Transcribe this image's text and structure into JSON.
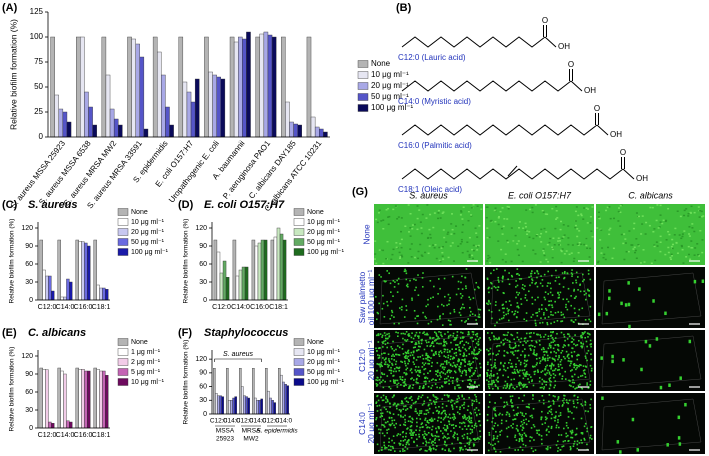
{
  "chart_data": [
    {
      "type": "bar",
      "panel": "(A)",
      "y_label": "Relative biofilm formation (%)",
      "categories": [
        "S. aureus MSSA 25923",
        "S. aureus MSSA 6538",
        "S. aureus MRSA MW2",
        "S. aureus MRSA 33591",
        "S. epidermidis",
        "E. coli O157:H7",
        "Uropathogenic E. coli",
        "A. baumannii",
        "P. aeruginosa PAO1",
        "C. albicans DAY185",
        "C. albicans ATCC 10231"
      ],
      "series": [
        {
          "name": "None",
          "color": "#b4b4b4",
          "values": [
            100,
            100,
            100,
            100,
            100,
            100,
            100,
            100,
            100,
            100,
            100
          ]
        },
        {
          "name": "10 μg ml⁻¹",
          "color": "#e6e6f2",
          "values": [
            42,
            100,
            62,
            98,
            85,
            55,
            65,
            95,
            103,
            35,
            20
          ]
        },
        {
          "name": "20 μg ml⁻¹",
          "color": "#a8a8e6",
          "values": [
            28,
            45,
            28,
            93,
            62,
            45,
            62,
            100,
            105,
            15,
            10
          ]
        },
        {
          "name": "50 μg ml⁻¹",
          "color": "#5555c8",
          "values": [
            25,
            30,
            18,
            80,
            30,
            35,
            60,
            98,
            102,
            13,
            8
          ]
        },
        {
          "name": "100 μg ml⁻¹",
          "color": "#0a0a5a",
          "values": [
            15,
            12,
            12,
            8,
            12,
            58,
            58,
            105,
            100,
            12,
            5
          ]
        }
      ],
      "ylim": [
        0,
        125
      ],
      "yticks": [
        0,
        25,
        50,
        75,
        100,
        125
      ]
    },
    {
      "type": "bar",
      "panel": "(C)",
      "title": "S. aureus",
      "y_label": "Relative biofilm formation (%)",
      "categories": [
        "C12:0",
        "C14:0",
        "C16:0",
        "C18:1"
      ],
      "series": [
        {
          "name": "None",
          "color": "#b4b4b4",
          "values": [
            100,
            100,
            100,
            100
          ]
        },
        {
          "name": "10 μg ml⁻¹",
          "color": "#ffffff",
          "values": [
            50,
            5,
            98,
            25
          ]
        },
        {
          "name": "20 μg ml⁻¹",
          "color": "#c8c8f0",
          "values": [
            40,
            5,
            97,
            20
          ]
        },
        {
          "name": "50 μg ml⁻¹",
          "color": "#6a6ae0",
          "values": [
            40,
            35,
            95,
            20
          ]
        },
        {
          "name": "100 μg ml⁻¹",
          "color": "#1a1aa8",
          "values": [
            15,
            30,
            90,
            18
          ]
        }
      ],
      "ylim": [
        0,
        130
      ],
      "yticks": [
        0,
        30,
        60,
        90,
        120
      ]
    },
    {
      "type": "bar",
      "panel": "(D)",
      "title": "E. coli O157:H7",
      "y_label": "Relative biofilm formation (%)",
      "categories": [
        "C12:0",
        "C14:0",
        "C16:0",
        "C18:1"
      ],
      "series": [
        {
          "name": "None",
          "color": "#b4b4b4",
          "values": [
            100,
            100,
            100,
            100
          ]
        },
        {
          "name": "10 μg ml⁻¹",
          "color": "#ffffff",
          "values": [
            80,
            40,
            90,
            105
          ]
        },
        {
          "name": "20 μg ml⁻¹",
          "color": "#c8e8c0",
          "values": [
            45,
            50,
            95,
            120
          ]
        },
        {
          "name": "50 μg ml⁻¹",
          "color": "#62aa62",
          "values": [
            65,
            55,
            100,
            110
          ]
        },
        {
          "name": "100 μg ml⁻¹",
          "color": "#1e6b1e",
          "values": [
            38,
            55,
            100,
            100
          ]
        }
      ],
      "ylim": [
        0,
        130
      ],
      "yticks": [
        0,
        30,
        60,
        90,
        120
      ]
    },
    {
      "type": "bar",
      "panel": "(E)",
      "title": "C. albicans",
      "y_label": "Relative biofilm formation (%)",
      "categories": [
        "C12:0",
        "C14:0",
        "C16:0",
        "C18:1"
      ],
      "series": [
        {
          "name": "None",
          "color": "#b4b4b4",
          "values": [
            100,
            100,
            100,
            100
          ]
        },
        {
          "name": "1 μg ml⁻¹",
          "color": "#ffffff",
          "values": [
            98,
            95,
            98,
            98
          ]
        },
        {
          "name": "2 μg ml⁻¹",
          "color": "#f2cce8",
          "values": [
            97,
            90,
            98,
            95
          ]
        },
        {
          "name": "5 μg ml⁻¹",
          "color": "#c464b4",
          "values": [
            10,
            12,
            95,
            95
          ]
        },
        {
          "name": "10 μg ml⁻¹",
          "color": "#6e0a5e",
          "values": [
            8,
            10,
            95,
            88
          ]
        }
      ],
      "ylim": [
        0,
        130
      ],
      "yticks": [
        0,
        30,
        60,
        90,
        120
      ]
    },
    {
      "type": "bar",
      "panel": "(F)",
      "title": "Staphylococcus",
      "y_label": "Relative biofilm formation (%)",
      "categories": [
        "C12:0",
        "C14:0",
        "C12:0",
        "C14:0",
        "C12:0",
        "C14:0"
      ],
      "groups": [
        [
          "MSSA",
          "25923"
        ],
        [
          "MRSA",
          "MW2"
        ],
        [
          "S. epidermidis"
        ]
      ],
      "bracket_label": "S. aureus",
      "series": [
        {
          "name": "None",
          "color": "#b4b4b4",
          "values": [
            100,
            100,
            100,
            100,
            100,
            100
          ]
        },
        {
          "name": "10 μg ml⁻¹",
          "color": "#e6e6f2",
          "values": [
            45,
            30,
            60,
            35,
            50,
            85
          ]
        },
        {
          "name": "20 μg ml⁻¹",
          "color": "#a8a8e6",
          "values": [
            40,
            30,
            40,
            30,
            35,
            70
          ]
        },
        {
          "name": "50 μg ml⁻¹",
          "color": "#5555c8",
          "values": [
            40,
            35,
            38,
            30,
            30,
            65
          ]
        },
        {
          "name": "100 μg ml⁻¹",
          "color": "#0a0a8a",
          "values": [
            38,
            38,
            35,
            33,
            25,
            62
          ]
        }
      ],
      "ylim": [
        0,
        140
      ],
      "yticks": [
        0,
        30,
        60,
        90,
        120
      ]
    }
  ],
  "structures": {
    "panel": "(B)",
    "atoms": [
      "O",
      "OH"
    ],
    "acids": [
      "C12:0 (Lauric acid)",
      "C14:0 (Myristic acid)",
      "C16:0 (Palmitic acid)",
      "C18:1 (Oleic acid)"
    ]
  },
  "micrographs": {
    "panel": "(G)",
    "columns": [
      "S. aureus",
      "E. coli O157:H7",
      "C. albicans"
    ],
    "rows": [
      [
        "None"
      ],
      [
        "Saw palmetto",
        "oil 100 μg ml⁻¹"
      ],
      [
        "C12:0",
        "20 μg ml⁻¹"
      ],
      [
        "C14:0",
        "20 μg ml⁻¹"
      ]
    ]
  }
}
